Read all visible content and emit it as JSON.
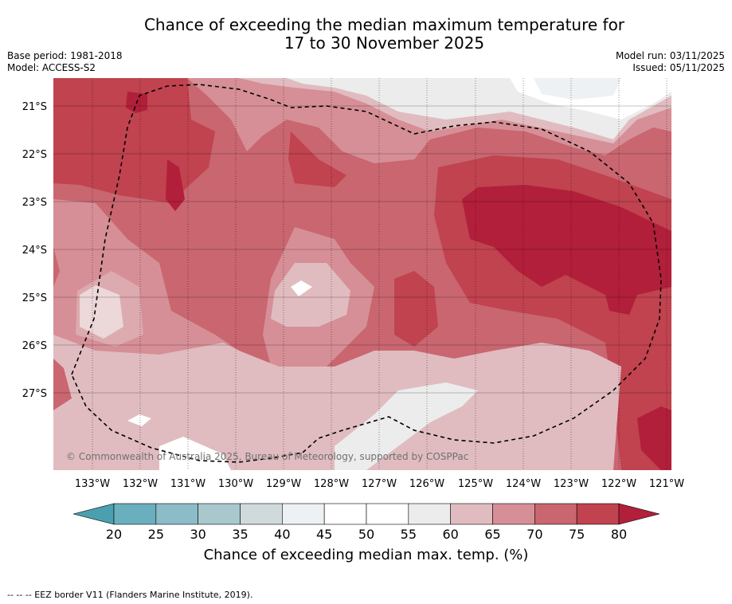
{
  "title_line1": "Chance of exceeding the median maximum temperature for",
  "title_line2": "17 to 30 November 2025",
  "base_period": "Base period: 1981-2018",
  "model": "Model: ACCESS-S2",
  "model_run": "Model run: 03/11/2025",
  "issued": "Issued: 05/11/2025",
  "copyright": "© Commonwealth of Australia 2025, Bureau of Meteorology, supported by COSPPac",
  "lat_labels": [
    "21°S",
    "22°S",
    "23°S",
    "24°S",
    "25°S",
    "26°S",
    "27°S"
  ],
  "lon_labels": [
    "133°W",
    "132°W",
    "131°W",
    "130°W",
    "129°W",
    "128°W",
    "127°W",
    "126°W",
    "125°W",
    "124°W",
    "123°W",
    "122°W",
    "121°W"
  ],
  "colorbar": {
    "ticks": [
      "20",
      "25",
      "30",
      "35",
      "40",
      "45",
      "50",
      "55",
      "60",
      "65",
      "70",
      "75",
      "80"
    ],
    "label": "Chance of exceeding median max. temp. (%)",
    "colors": [
      "#4aa0ae",
      "#6aafbd",
      "#8cbcc7",
      "#a8c8cd",
      "#d0dadc",
      "#edf1f3",
      "#ffffff",
      "#ffffff",
      "#ececec",
      "#e0bcc0",
      "#d68f96",
      "#c96670",
      "#c0434f",
      "#b21f3a"
    ]
  },
  "footnote": "--  --  -- EEZ border V11 (Flanders Marine Institute, 2019)."
}
